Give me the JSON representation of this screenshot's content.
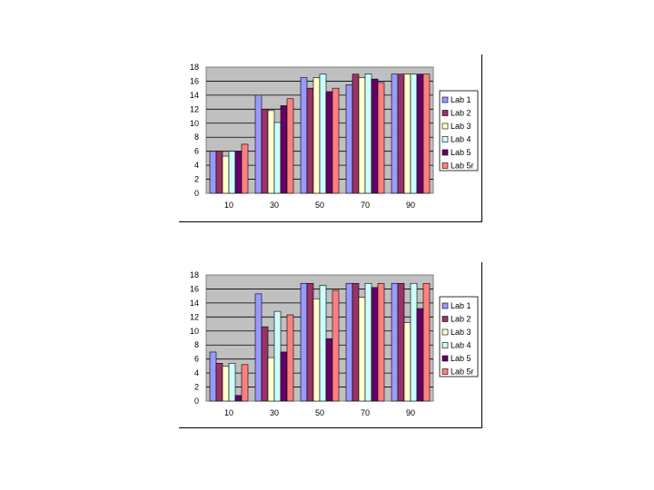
{
  "colors": {
    "plot_bg": "#c0c0c0",
    "grid": "#000000",
    "series": [
      "#9999ff",
      "#993366",
      "#ffffcc",
      "#ccffff",
      "#660066",
      "#ff8080"
    ]
  },
  "chart_data": [
    {
      "type": "bar",
      "title": "",
      "xlabel": "",
      "ylabel": "",
      "ylim": [
        0,
        18
      ],
      "yticks": [
        "18",
        "16",
        "14",
        "12",
        "10",
        "8",
        "6",
        "4",
        "2",
        "0"
      ],
      "categories": [
        "10",
        "30",
        "50",
        "70",
        "90"
      ],
      "grid": true,
      "legend_position": "right",
      "series": [
        {
          "name": "Lab 1",
          "values": [
            6,
            14,
            16.5,
            15.5,
            17
          ]
        },
        {
          "name": "Lab 2",
          "values": [
            6,
            12,
            15,
            17,
            17
          ]
        },
        {
          "name": "Lab 3",
          "values": [
            5.3,
            11.8,
            16.5,
            16.5,
            17
          ]
        },
        {
          "name": "Lab 4",
          "values": [
            6,
            10.1,
            17,
            17,
            17
          ]
        },
        {
          "name": "Lab 5",
          "values": [
            6,
            12.5,
            14.5,
            16.3,
            17
          ]
        },
        {
          "name": "Lab 5r",
          "values": [
            7,
            13.5,
            15,
            15.8,
            17
          ]
        }
      ]
    },
    {
      "type": "bar",
      "title": "",
      "xlabel": "",
      "ylabel": "",
      "ylim": [
        0,
        18
      ],
      "yticks": [
        "18",
        "16",
        "14",
        "12",
        "10",
        "8",
        "6",
        "4",
        "2",
        "0"
      ],
      "categories": [
        "10",
        "30",
        "50",
        "70",
        "90"
      ],
      "grid": true,
      "legend_position": "right",
      "series": [
        {
          "name": "Lab 1",
          "values": [
            7,
            15.3,
            16.8,
            16.8,
            16.8
          ]
        },
        {
          "name": "Lab 2",
          "values": [
            5.4,
            10.6,
            16.8,
            16.8,
            16.8
          ]
        },
        {
          "name": "Lab 3",
          "values": [
            5,
            6.2,
            14.6,
            14.8,
            11.2
          ]
        },
        {
          "name": "Lab 4",
          "values": [
            5.4,
            12.8,
            16.5,
            16.8,
            16.8
          ]
        },
        {
          "name": "Lab 5",
          "values": [
            0.8,
            7,
            8.9,
            16.2,
            13.2
          ]
        },
        {
          "name": "Lab 5r",
          "values": [
            5.2,
            12.3,
            15.8,
            16.8,
            16.8
          ]
        }
      ]
    }
  ]
}
